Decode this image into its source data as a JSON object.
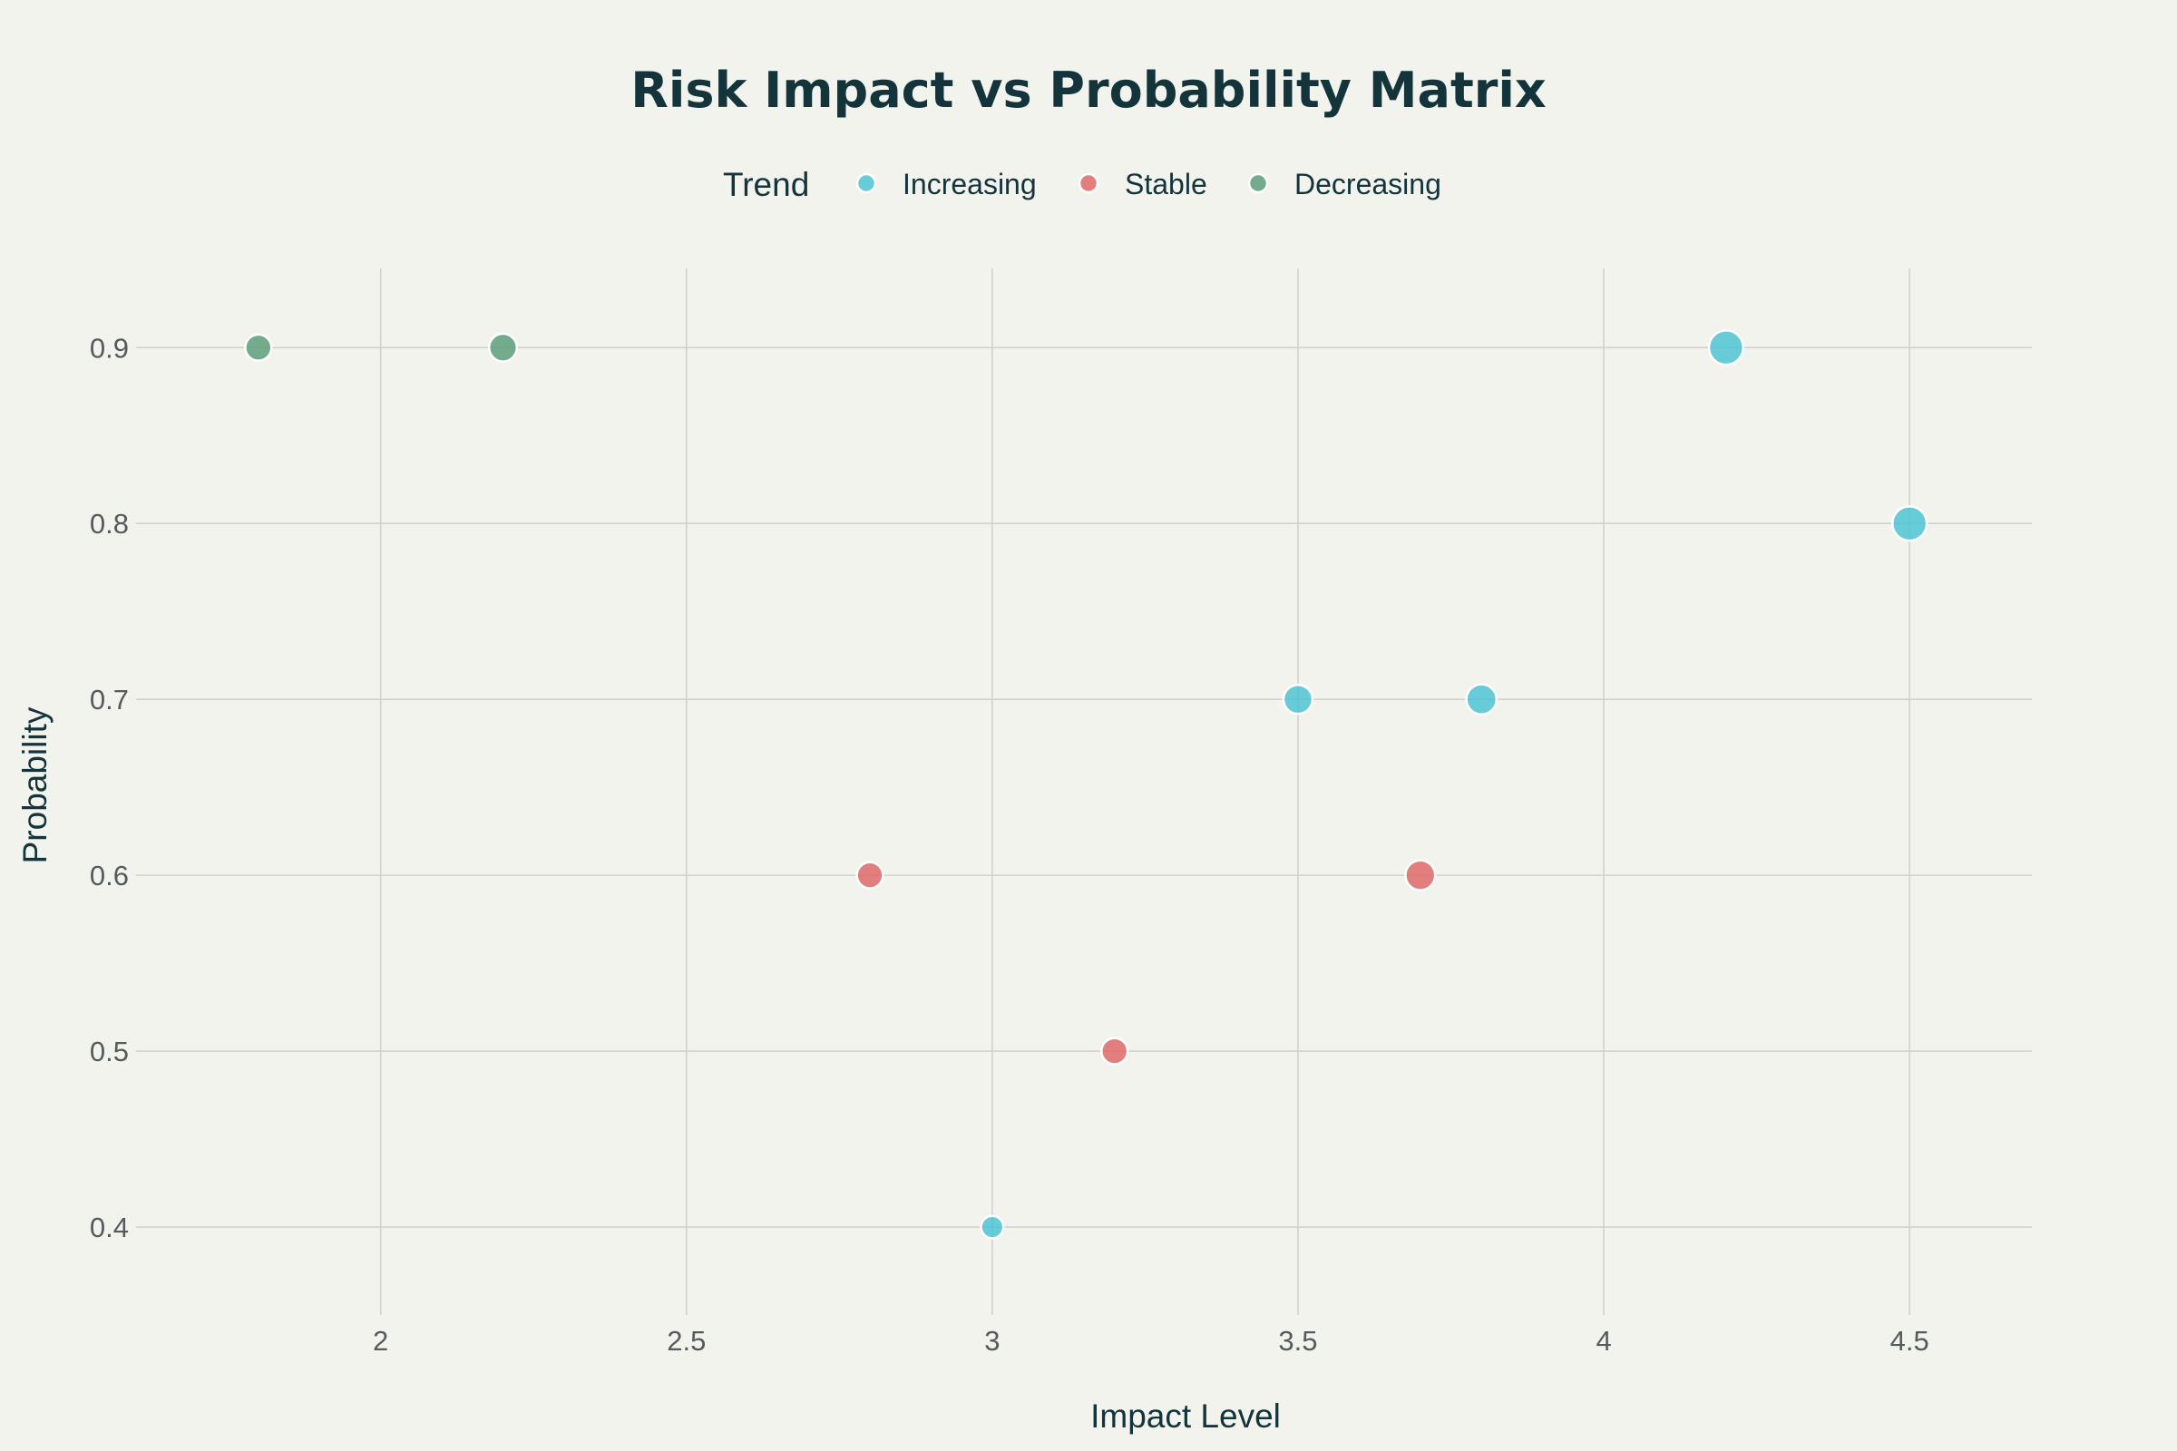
{
  "chart_data": {
    "type": "scatter",
    "title": "Risk Impact vs Probability Matrix",
    "xlabel": "Impact Level",
    "ylabel": "Probability",
    "xlim": [
      1.6,
      4.7
    ],
    "ylim": [
      0.35,
      0.945
    ],
    "x_ticks": [
      2,
      2.5,
      3,
      3.5,
      4,
      4.5
    ],
    "x_tick_labels": [
      "2",
      "2.5",
      "3",
      "3.5",
      "4",
      "4.5"
    ],
    "y_ticks": [
      0.4,
      0.5,
      0.6,
      0.7,
      0.8,
      0.9
    ],
    "y_tick_labels": [
      "0.4",
      "0.5",
      "0.6",
      "0.7",
      "0.8",
      "0.9"
    ],
    "grid": true,
    "legend": {
      "title": "Trend",
      "placement": "top-center"
    },
    "series": [
      {
        "name": "Increasing",
        "color": "#4fc3d4",
        "points": [
          {
            "x": 4.2,
            "y": 0.9,
            "size": 5
          },
          {
            "x": 4.5,
            "y": 0.8,
            "size": 5
          },
          {
            "x": 3.5,
            "y": 0.7,
            "size": 3.5
          },
          {
            "x": 3.8,
            "y": 0.7,
            "size": 3.8
          },
          {
            "x": 3.0,
            "y": 0.4,
            "size": 2
          }
        ]
      },
      {
        "name": "Stable",
        "color": "#de6a6a",
        "points": [
          {
            "x": 2.8,
            "y": 0.6,
            "size": 2.8
          },
          {
            "x": 3.7,
            "y": 0.6,
            "size": 3.7
          },
          {
            "x": 3.2,
            "y": 0.5,
            "size": 2.8
          }
        ]
      },
      {
        "name": "Decreasing",
        "color": "#5c9e7a",
        "points": [
          {
            "x": 1.8,
            "y": 0.9,
            "size": 2.8
          },
          {
            "x": 2.2,
            "y": 0.9,
            "size": 3.2
          }
        ]
      }
    ]
  }
}
